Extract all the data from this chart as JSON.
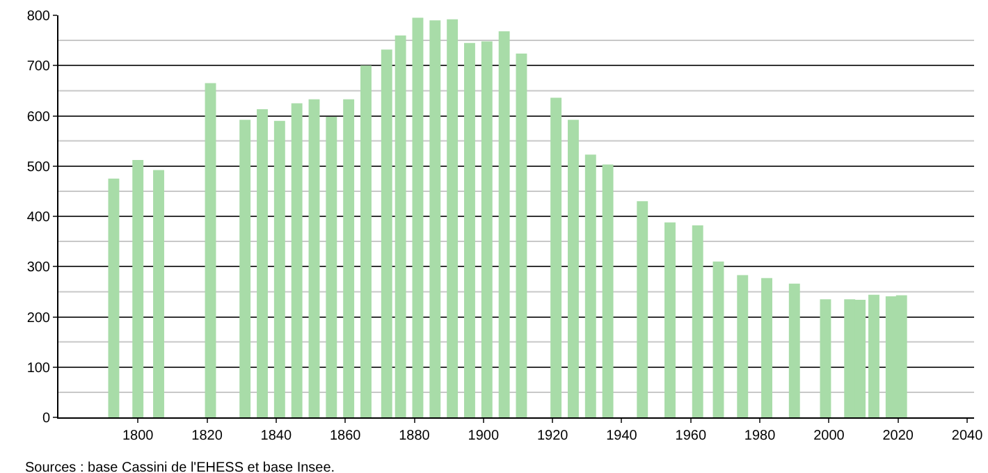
{
  "chart_data": {
    "type": "bar",
    "x": [
      1793,
      1800,
      1806,
      1821,
      1831,
      1836,
      1841,
      1846,
      1851,
      1856,
      1861,
      1866,
      1872,
      1876,
      1881,
      1886,
      1891,
      1896,
      1901,
      1906,
      1911,
      1921,
      1926,
      1931,
      1936,
      1946,
      1954,
      1962,
      1968,
      1975,
      1982,
      1990,
      1999,
      2006,
      2009,
      2013,
      2018,
      2021
    ],
    "values": [
      475,
      512,
      492,
      665,
      592,
      613,
      590,
      625,
      633,
      598,
      633,
      700,
      732,
      760,
      795,
      790,
      792,
      745,
      748,
      768,
      724,
      636,
      592,
      523,
      503,
      430,
      388,
      382,
      310,
      283,
      277,
      266,
      235,
      235,
      234,
      244,
      241,
      243
    ],
    "color": "#a8dca8",
    "xlim": [
      1777,
      2042
    ],
    "xticks": [
      1800,
      1820,
      1840,
      1860,
      1880,
      1900,
      1920,
      1940,
      1960,
      1980,
      2000,
      2020,
      2040
    ],
    "ylim": [
      0,
      800
    ],
    "yticks": [
      0,
      100,
      200,
      300,
      400,
      500,
      600,
      700,
      800
    ],
    "grid": "y",
    "annotations": [
      "Sources : base Cassini de l'EHESS et base Insee."
    ]
  }
}
